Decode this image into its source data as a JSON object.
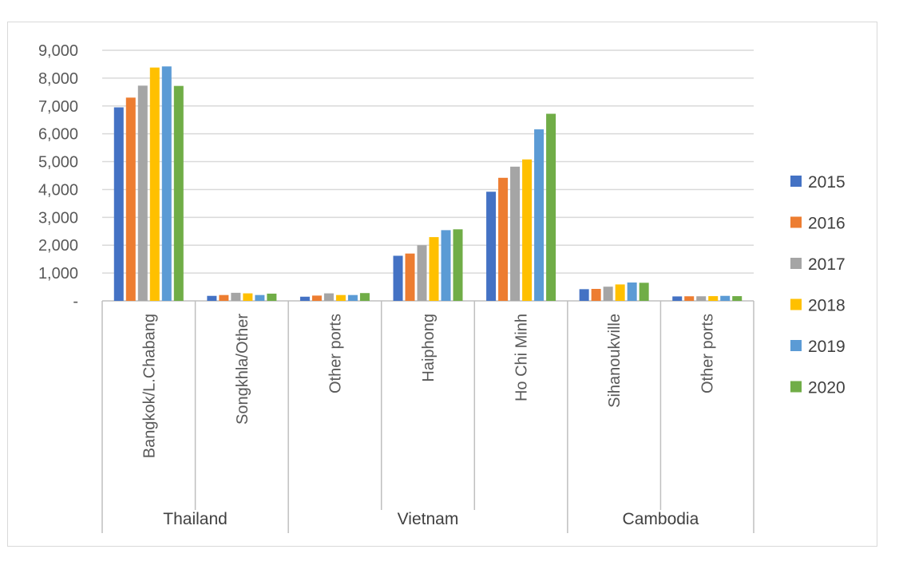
{
  "chart_data": {
    "type": "bar",
    "groups": [
      {
        "name": "Thailand",
        "categories": [
          "Bangkok/L.Chabang",
          "Songkhla/Other"
        ]
      },
      {
        "name": "Vietnam",
        "categories": [
          "Other ports",
          "Haiphong",
          "Ho Chi Minh"
        ]
      },
      {
        "name": "Cambodia",
        "categories": [
          "Sihanoukville",
          "Other ports"
        ]
      }
    ],
    "categories": [
      "Bangkok/L.Chabang",
      "Songkhla/Other",
      "Other ports",
      "Haiphong",
      "Ho Chi Minh",
      "Sihanoukville",
      "Other ports"
    ],
    "series": [
      {
        "name": "2015",
        "color": "#4472C4",
        "values": [
          6950,
          180,
          150,
          1620,
          3920,
          420,
          160
        ]
      },
      {
        "name": "2016",
        "color": "#ED7D31",
        "values": [
          7300,
          210,
          190,
          1700,
          4420,
          430,
          165
        ]
      },
      {
        "name": "2017",
        "color": "#A5A5A5",
        "values": [
          7730,
          290,
          270,
          2000,
          4820,
          510,
          165
        ]
      },
      {
        "name": "2018",
        "color": "#FFC000",
        "values": [
          8380,
          270,
          210,
          2290,
          5080,
          590,
          170
        ]
      },
      {
        "name": "2019",
        "color": "#5B9BD5",
        "values": [
          8420,
          210,
          210,
          2540,
          6160,
          660,
          180
        ]
      },
      {
        "name": "2020",
        "color": "#70AD47",
        "values": [
          7720,
          260,
          280,
          2570,
          6720,
          650,
          170
        ]
      }
    ],
    "ylim": [
      0,
      9000
    ],
    "yticks": [
      0,
      1000,
      2000,
      3000,
      4000,
      5000,
      6000,
      7000,
      8000,
      9000
    ],
    "ytick_labels": [
      "-",
      "1,000",
      "2,000",
      "3,000",
      "4,000",
      "5,000",
      "6,000",
      "7,000",
      "8,000",
      "9,000"
    ],
    "legend_position": "right",
    "grid": true,
    "gridline_color": "#d9d9d9",
    "axis_color": "#bfbfbf"
  }
}
